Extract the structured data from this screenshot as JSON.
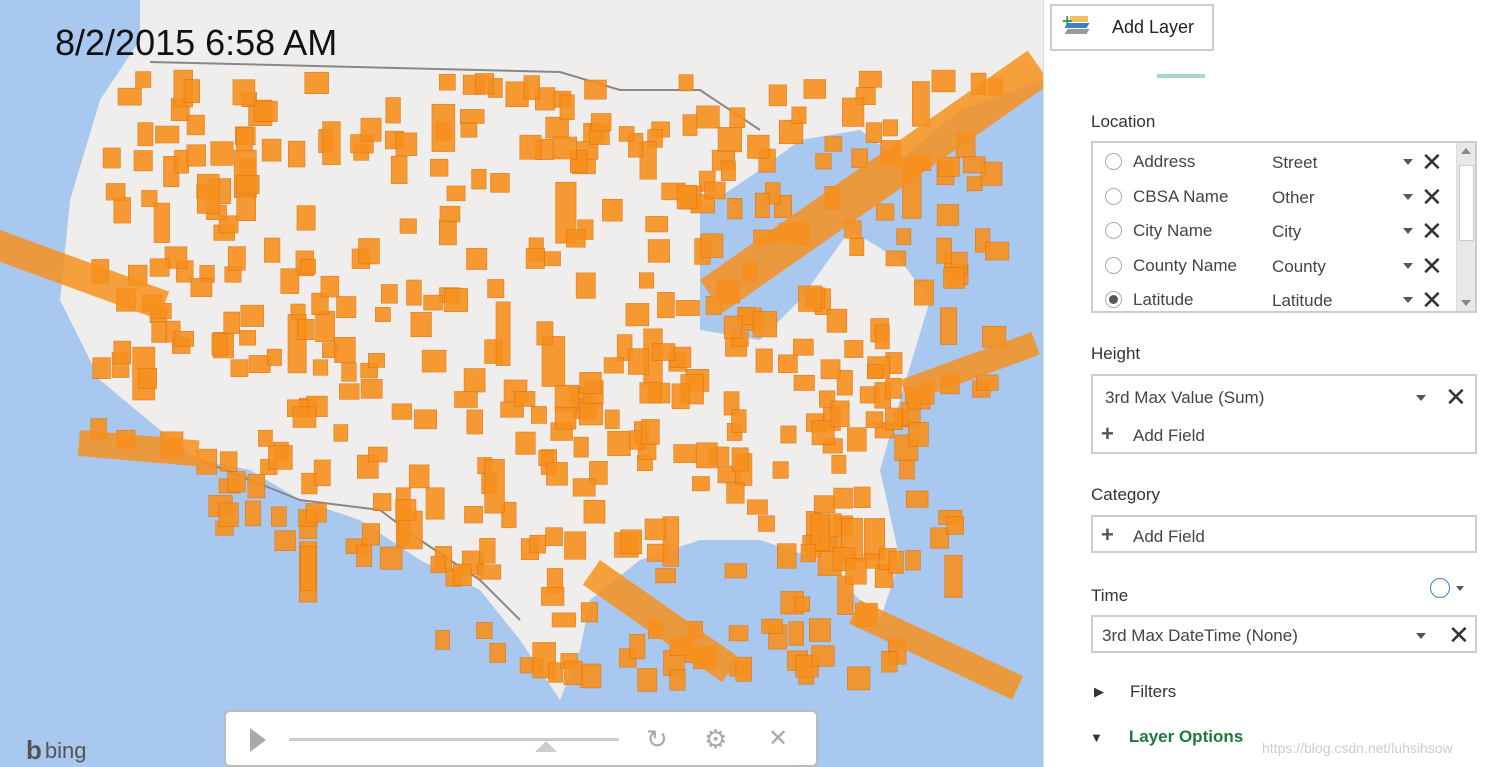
{
  "map": {
    "timestamp": "8/2/2015 6:58 AM",
    "brand": "bing",
    "bar_color": "#f7901e",
    "water_color": "#a9c8f0",
    "land_color": "#efeeec",
    "timeline_progress": 0.78
  },
  "player": {
    "play_icon": "play-icon",
    "refresh_icon": "refresh-icon",
    "settings_icon": "gear-icon",
    "close_icon": "close-icon"
  },
  "panel": {
    "add_layer_label": "Add Layer",
    "location": {
      "label": "Location",
      "rows": [
        {
          "name": "Address",
          "type": "Street",
          "selected": false
        },
        {
          "name": "CBSA Name",
          "type": "Other",
          "selected": false
        },
        {
          "name": "City Name",
          "type": "City",
          "selected": false
        },
        {
          "name": "County Name",
          "type": "County",
          "selected": false
        },
        {
          "name": "Latitude",
          "type": "Latitude",
          "selected": true
        }
      ]
    },
    "height": {
      "label": "Height",
      "field": "3rd Max Value (Sum)",
      "add_field": "Add Field"
    },
    "category": {
      "label": "Category",
      "add_field": "Add Field"
    },
    "time": {
      "label": "Time",
      "field": "3rd Max DateTime (None)"
    },
    "filters_label": "Filters",
    "layer_options_label": "Layer Options",
    "accent": "#1e7a3c"
  },
  "watermark": "https://blog.csdn.net/luhsihsow"
}
